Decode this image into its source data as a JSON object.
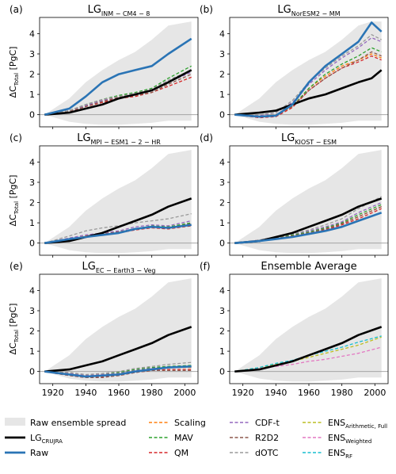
{
  "figure": {
    "ylabel_main": "ΔC",
    "ylabel_sub": "Total",
    "ylabel_unit": " [PgC]",
    "yticks": [
      "0",
      "1",
      "2",
      "3",
      "4"
    ],
    "xticks": [
      "1920",
      "1940",
      "1960",
      "1980",
      "2000"
    ]
  },
  "legend": {
    "col1": [
      {
        "key": "spread",
        "label": "Raw ensemble spread"
      },
      {
        "key": "cru",
        "label": "LG",
        "sub": "CRUJRA"
      },
      {
        "key": "raw",
        "label": "Raw"
      }
    ],
    "col2": [
      {
        "key": "scaling",
        "label": "Scaling"
      },
      {
        "key": "mav",
        "label": "MAV"
      },
      {
        "key": "qm",
        "label": "QM"
      }
    ],
    "col3": [
      {
        "key": "cdft",
        "label": "CDF-t"
      },
      {
        "key": "r2d2",
        "label": "R2D2"
      },
      {
        "key": "dotc",
        "label": "dOTC"
      }
    ],
    "col4": [
      {
        "key": "ensA",
        "label": "ENS",
        "sub": "Arithmetic, Full"
      },
      {
        "key": "ensW",
        "label": "ENS",
        "sub": "Weighted"
      },
      {
        "key": "ensR",
        "label": "ENS",
        "sub": "RF"
      }
    ]
  },
  "colors": {
    "spread": "#e6e6e6",
    "cru": "#000000",
    "raw": "#2a74b5",
    "scaling": "#ff7f0e",
    "mav": "#2ca02c",
    "qm": "#d62728",
    "cdft": "#9467bd",
    "r2d2": "#8c564b",
    "dotc": "#999999",
    "ensA": "#bcbd22",
    "ensW": "#e377c2",
    "ensR": "#17becf"
  },
  "chart_data": [
    {
      "type": "line",
      "panel": "(a)",
      "title": "LG",
      "title_sub": "INM − CM4 − 8",
      "x": [
        1915,
        1930,
        1940,
        1950,
        1960,
        1970,
        1980,
        1990,
        2004
      ],
      "xlim": [
        1912,
        2008
      ],
      "ylim": [
        -0.6,
        4.8
      ],
      "spread": {
        "upper": [
          0,
          0.8,
          1.6,
          2.2,
          2.7,
          3.1,
          3.7,
          4.4,
          4.6
        ],
        "lower": [
          0,
          -0.35,
          -0.45,
          -0.5,
          -0.5,
          -0.45,
          -0.4,
          -0.3,
          -0.3
        ]
      },
      "series": [
        {
          "key": "cru",
          "values": [
            0,
            0.1,
            0.3,
            0.5,
            0.8,
            1.0,
            1.2,
            1.6,
            2.2
          ]
        },
        {
          "key": "raw",
          "values": [
            0,
            0.3,
            0.9,
            1.6,
            2.0,
            2.2,
            2.4,
            3.0,
            3.75
          ]
        },
        {
          "key": "scaling",
          "values": [
            0,
            0.2,
            0.45,
            0.7,
            0.9,
            1.0,
            1.2,
            1.6,
            2.2
          ]
        },
        {
          "key": "mav",
          "values": [
            0,
            0.2,
            0.5,
            0.75,
            0.95,
            1.1,
            1.3,
            1.8,
            2.4
          ]
        },
        {
          "key": "qm",
          "values": [
            0,
            0.15,
            0.4,
            0.6,
            0.8,
            0.9,
            1.1,
            1.4,
            1.85
          ]
        },
        {
          "key": "cdft",
          "values": [
            0,
            0.2,
            0.45,
            0.7,
            0.85,
            1.0,
            1.2,
            1.6,
            2.1
          ]
        },
        {
          "key": "r2d2",
          "values": [
            0,
            0.15,
            0.4,
            0.65,
            0.85,
            0.95,
            1.1,
            1.5,
            2.0
          ]
        },
        {
          "key": "dotc",
          "values": [
            0,
            0.2,
            0.5,
            0.75,
            0.9,
            1.05,
            1.25,
            1.7,
            2.2
          ]
        }
      ]
    },
    {
      "type": "line",
      "panel": "(b)",
      "title": "LG",
      "title_sub": "NorESM2 − MM",
      "x": [
        1915,
        1930,
        1940,
        1950,
        1960,
        1970,
        1980,
        1990,
        1998,
        2004
      ],
      "xlim": [
        1912,
        2008
      ],
      "ylim": [
        -0.6,
        4.8
      ],
      "spread": {
        "upper": [
          0,
          0.8,
          1.6,
          2.2,
          2.7,
          3.1,
          3.7,
          4.4,
          4.6,
          4.6
        ],
        "lower": [
          0,
          -0.35,
          -0.45,
          -0.5,
          -0.5,
          -0.45,
          -0.4,
          -0.3,
          -0.3,
          -0.3
        ]
      },
      "series": [
        {
          "key": "cru",
          "values": [
            0,
            0.1,
            0.2,
            0.5,
            0.8,
            1.0,
            1.3,
            1.6,
            1.8,
            2.2
          ]
        },
        {
          "key": "raw",
          "values": [
            0,
            -0.1,
            -0.05,
            0.5,
            1.6,
            2.4,
            3.0,
            3.6,
            4.55,
            4.1
          ]
        },
        {
          "key": "scaling",
          "values": [
            0,
            -0.1,
            -0.05,
            0.4,
            1.3,
            1.9,
            2.4,
            2.7,
            3.0,
            2.8
          ]
        },
        {
          "key": "mav",
          "values": [
            0,
            -0.1,
            0.0,
            0.4,
            1.3,
            2.0,
            2.5,
            2.9,
            3.3,
            3.1
          ]
        },
        {
          "key": "qm",
          "values": [
            0,
            -0.15,
            -0.1,
            0.35,
            1.2,
            1.8,
            2.3,
            2.6,
            2.9,
            2.7
          ]
        },
        {
          "key": "cdft",
          "values": [
            0,
            -0.05,
            0.1,
            0.6,
            1.5,
            2.2,
            2.8,
            3.3,
            3.8,
            3.6
          ]
        },
        {
          "key": "r2d2",
          "values": [
            0,
            -0.1,
            0.0,
            0.4,
            1.2,
            1.8,
            2.3,
            2.7,
            3.1,
            2.9
          ]
        },
        {
          "key": "dotc",
          "values": [
            0,
            0.0,
            0.1,
            0.7,
            1.6,
            2.3,
            2.9,
            3.4,
            3.95,
            3.7
          ]
        }
      ]
    },
    {
      "type": "line",
      "panel": "(c)",
      "title": "LG",
      "title_sub": "MPI − ESM1 − 2 − HR",
      "x": [
        1915,
        1930,
        1940,
        1950,
        1960,
        1970,
        1980,
        1990,
        2004
      ],
      "xlim": [
        1912,
        2008
      ],
      "ylim": [
        -0.6,
        4.8
      ],
      "spread": {
        "upper": [
          0,
          0.8,
          1.6,
          2.2,
          2.7,
          3.1,
          3.7,
          4.4,
          4.6
        ],
        "lower": [
          0,
          -0.35,
          -0.45,
          -0.5,
          -0.5,
          -0.45,
          -0.4,
          -0.3,
          -0.3
        ]
      },
      "series": [
        {
          "key": "cru",
          "values": [
            0,
            0.1,
            0.3,
            0.5,
            0.8,
            1.1,
            1.4,
            1.8,
            2.2
          ]
        },
        {
          "key": "raw",
          "values": [
            0,
            0.2,
            0.3,
            0.4,
            0.5,
            0.7,
            0.8,
            0.75,
            0.9
          ]
        },
        {
          "key": "scaling",
          "values": [
            0,
            0.2,
            0.35,
            0.45,
            0.55,
            0.7,
            0.8,
            0.8,
            0.95
          ]
        },
        {
          "key": "mav",
          "values": [
            0,
            0.2,
            0.3,
            0.4,
            0.55,
            0.7,
            0.85,
            0.8,
            1.0
          ]
        },
        {
          "key": "qm",
          "values": [
            0,
            0.15,
            0.3,
            0.4,
            0.5,
            0.65,
            0.75,
            0.7,
            0.85
          ]
        },
        {
          "key": "cdft",
          "values": [
            0,
            0.25,
            0.4,
            0.5,
            0.6,
            0.8,
            0.9,
            0.85,
            1.1
          ]
        },
        {
          "key": "r2d2",
          "values": [
            0,
            0.2,
            0.3,
            0.45,
            0.55,
            0.7,
            0.8,
            0.75,
            0.95
          ]
        },
        {
          "key": "dotc",
          "values": [
            0,
            0.35,
            0.6,
            0.75,
            0.85,
            1.0,
            1.1,
            1.2,
            1.45
          ]
        }
      ]
    },
    {
      "type": "line",
      "panel": "(d)",
      "title": "LG",
      "title_sub": "KIOST − ESM",
      "x": [
        1915,
        1930,
        1940,
        1950,
        1960,
        1970,
        1980,
        1990,
        2004
      ],
      "xlim": [
        1912,
        2008
      ],
      "ylim": [
        -0.6,
        4.8
      ],
      "spread": {
        "upper": [
          0,
          0.8,
          1.6,
          2.2,
          2.7,
          3.1,
          3.7,
          4.4,
          4.6
        ],
        "lower": [
          0,
          -0.35,
          -0.45,
          -0.5,
          -0.5,
          -0.45,
          -0.4,
          -0.3,
          -0.3
        ]
      },
      "series": [
        {
          "key": "cru",
          "values": [
            0,
            0.1,
            0.3,
            0.5,
            0.8,
            1.1,
            1.4,
            1.8,
            2.2
          ]
        },
        {
          "key": "raw",
          "values": [
            0,
            0.1,
            0.2,
            0.3,
            0.45,
            0.6,
            0.8,
            1.1,
            1.5
          ]
        },
        {
          "key": "scaling",
          "values": [
            0,
            0.12,
            0.25,
            0.35,
            0.5,
            0.7,
            0.95,
            1.3,
            1.8
          ]
        },
        {
          "key": "mav",
          "values": [
            0,
            0.12,
            0.25,
            0.4,
            0.55,
            0.75,
            1.0,
            1.4,
            1.9
          ]
        },
        {
          "key": "qm",
          "values": [
            0,
            0.1,
            0.2,
            0.35,
            0.5,
            0.65,
            0.9,
            1.2,
            1.7
          ]
        },
        {
          "key": "cdft",
          "values": [
            0,
            0.15,
            0.3,
            0.45,
            0.6,
            0.8,
            1.05,
            1.5,
            2.0
          ]
        },
        {
          "key": "r2d2",
          "values": [
            0,
            0.1,
            0.25,
            0.35,
            0.5,
            0.7,
            0.95,
            1.3,
            1.8
          ]
        },
        {
          "key": "dotc",
          "values": [
            0,
            0.15,
            0.3,
            0.45,
            0.65,
            0.9,
            1.2,
            1.7,
            2.3
          ]
        }
      ]
    },
    {
      "type": "line",
      "panel": "(e)",
      "title": "LG",
      "title_sub": "EC − Earth3 − Veg",
      "x": [
        1915,
        1930,
        1940,
        1950,
        1960,
        1970,
        1980,
        1990,
        2004
      ],
      "xlim": [
        1912,
        2008
      ],
      "ylim": [
        -0.6,
        4.8
      ],
      "spread": {
        "upper": [
          0,
          0.8,
          1.6,
          2.2,
          2.7,
          3.1,
          3.7,
          4.4,
          4.6
        ],
        "lower": [
          0,
          -0.35,
          -0.45,
          -0.5,
          -0.5,
          -0.45,
          -0.4,
          -0.3,
          -0.3
        ]
      },
      "series": [
        {
          "key": "cru",
          "values": [
            0,
            0.1,
            0.3,
            0.5,
            0.8,
            1.1,
            1.4,
            1.8,
            2.2
          ]
        },
        {
          "key": "raw",
          "values": [
            0,
            -0.15,
            -0.25,
            -0.2,
            -0.15,
            0.0,
            0.1,
            0.2,
            0.25
          ]
        },
        {
          "key": "scaling",
          "values": [
            0,
            -0.15,
            -0.2,
            -0.2,
            -0.1,
            0.05,
            0.15,
            0.2,
            0.2
          ]
        },
        {
          "key": "mav",
          "values": [
            0,
            -0.1,
            -0.2,
            -0.15,
            -0.05,
            0.1,
            0.2,
            0.25,
            0.3
          ]
        },
        {
          "key": "qm",
          "values": [
            0,
            -0.2,
            -0.3,
            -0.25,
            -0.2,
            -0.05,
            0.05,
            0.1,
            0.1
          ]
        },
        {
          "key": "cdft",
          "values": [
            0,
            -0.1,
            -0.2,
            -0.15,
            -0.1,
            0.05,
            0.15,
            0.2,
            0.25
          ]
        },
        {
          "key": "r2d2",
          "values": [
            0,
            -0.2,
            -0.3,
            -0.3,
            -0.2,
            -0.05,
            0.05,
            0.05,
            0.05
          ]
        },
        {
          "key": "dotc",
          "values": [
            0,
            -0.05,
            -0.15,
            -0.1,
            0.0,
            0.15,
            0.25,
            0.35,
            0.45
          ]
        }
      ]
    },
    {
      "type": "line",
      "panel": "(f)",
      "title": "Ensemble Average",
      "title_sub": "",
      "x": [
        1915,
        1930,
        1940,
        1950,
        1960,
        1970,
        1980,
        1990,
        2004
      ],
      "xlim": [
        1912,
        2008
      ],
      "ylim": [
        -0.6,
        4.8
      ],
      "spread": {
        "upper": [
          0,
          0.8,
          1.6,
          2.2,
          2.7,
          3.1,
          3.7,
          4.4,
          4.6
        ],
        "lower": [
          0,
          -0.35,
          -0.45,
          -0.5,
          -0.5,
          -0.45,
          -0.4,
          -0.3,
          -0.3
        ]
      },
      "series": [
        {
          "key": "cru",
          "values": [
            0,
            0.1,
            0.3,
            0.5,
            0.8,
            1.1,
            1.4,
            1.8,
            2.2
          ]
        },
        {
          "key": "ensA",
          "values": [
            0,
            0.2,
            0.35,
            0.5,
            0.7,
            0.9,
            1.1,
            1.3,
            1.7
          ]
        },
        {
          "key": "ensW",
          "values": [
            0,
            0.15,
            0.25,
            0.35,
            0.5,
            0.6,
            0.75,
            0.9,
            1.2
          ]
        },
        {
          "key": "ensR",
          "values": [
            0,
            0.2,
            0.4,
            0.55,
            0.8,
            1.0,
            1.2,
            1.45,
            1.75
          ]
        }
      ]
    }
  ]
}
